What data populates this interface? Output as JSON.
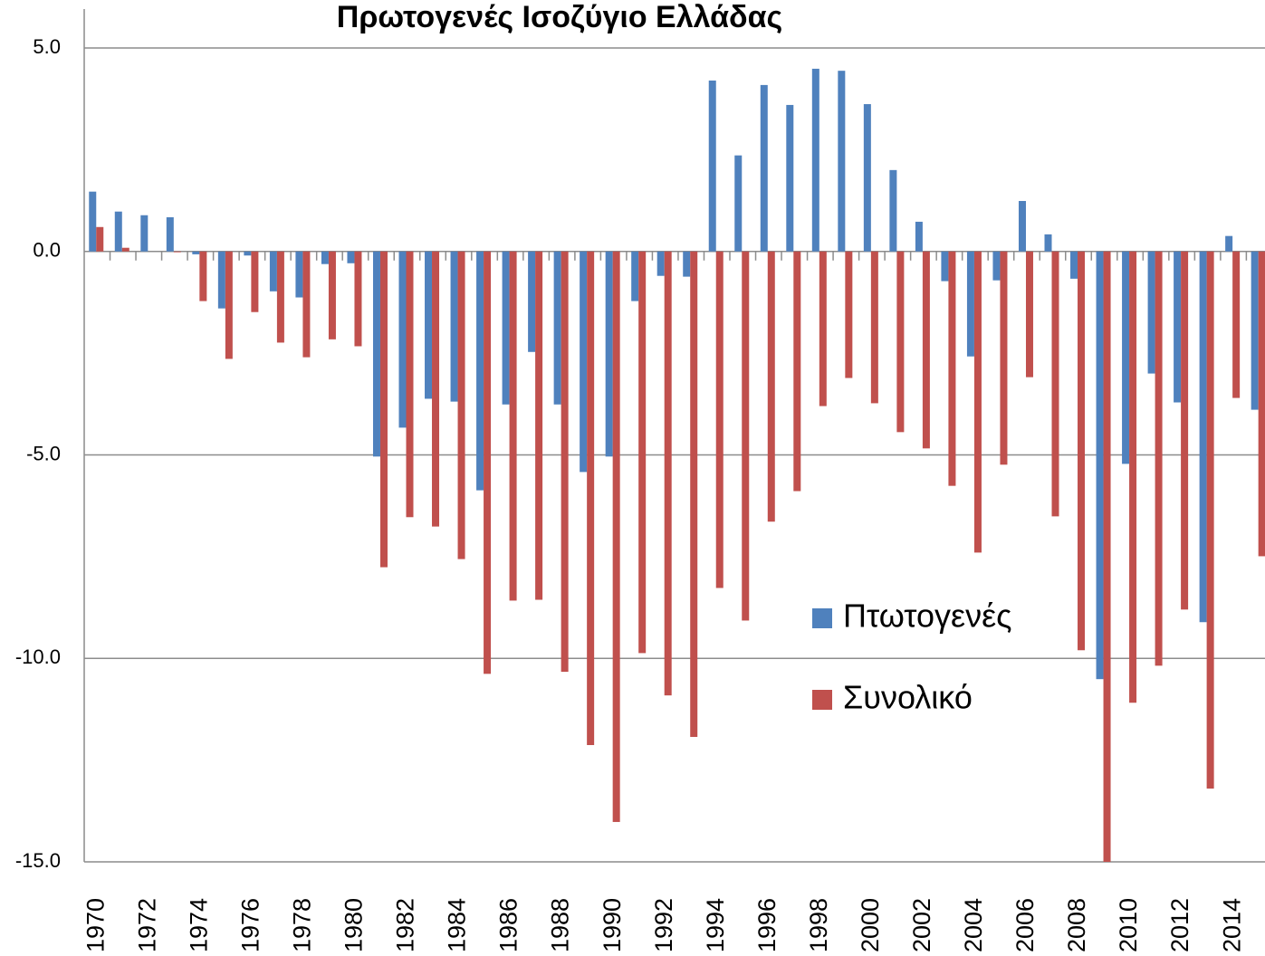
{
  "chart_data": {
    "type": "bar",
    "title": "Πρωτογενές Ισοζύγιο Ελλάδας",
    "categories": [
      "1970",
      null,
      "1972",
      null,
      "1974",
      null,
      "1976",
      null,
      "1978",
      null,
      "1980",
      null,
      "1982",
      null,
      "1984",
      null,
      "1986",
      null,
      "1988",
      null,
      "1990",
      null,
      "1992",
      null,
      "1994",
      null,
      "1996",
      null,
      "1998",
      null,
      "2000",
      null,
      "2002",
      null,
      "2004",
      null,
      "2006",
      null,
      "2008",
      null,
      "2010",
      null,
      "2012",
      null,
      "2014",
      null
    ],
    "series": [
      {
        "name": "Πτωτογενές",
        "color": "#4f81bd",
        "values": [
          1.47,
          0.98,
          0.89,
          0.84,
          -0.07,
          -1.4,
          -0.1,
          -0.98,
          -1.13,
          -0.31,
          -0.29,
          -5.04,
          -4.33,
          -3.62,
          -3.69,
          -5.87,
          -3.76,
          -2.47,
          -3.76,
          -5.42,
          -5.04,
          -1.22,
          -0.6,
          -0.62,
          4.2,
          2.36,
          4.09,
          3.6,
          4.49,
          4.44,
          3.62,
          2.0,
          0.73,
          -0.73,
          -2.58,
          -0.71,
          1.24,
          0.42,
          -0.67,
          -10.51,
          -5.22,
          -3.0,
          -3.71,
          -9.11,
          0.38,
          -3.89
        ]
      },
      {
        "name": "Συνολικό",
        "color": "#c0504d",
        "values": [
          0.6,
          0.09,
          0,
          -0.02,
          -1.22,
          -2.64,
          -1.49,
          -2.24,
          -2.6,
          -2.16,
          -2.33,
          -7.76,
          -6.53,
          -6.76,
          -7.56,
          -10.38,
          -8.58,
          -8.56,
          -10.33,
          -12.13,
          -14.02,
          -9.87,
          -10.91,
          -11.93,
          -8.27,
          -9.07,
          -6.64,
          -5.89,
          -3.8,
          -3.11,
          -3.73,
          -4.44,
          -4.84,
          -5.76,
          -7.4,
          -5.24,
          -3.09,
          -6.51,
          -9.8,
          -15.0,
          -11.09,
          -10.18,
          -8.8,
          -13.2,
          -3.6,
          -7.49
        ]
      }
    ],
    "ylim": [
      -15,
      5
    ],
    "yticks": [
      {
        "value": -15,
        "label": "-15.0"
      },
      {
        "value": -10,
        "label": "-10.0"
      },
      {
        "value": -5,
        "label": "-5.0"
      },
      {
        "value": 0,
        "label": "0.0"
      },
      {
        "value": 5,
        "label": "5.0"
      }
    ],
    "grid": true
  }
}
